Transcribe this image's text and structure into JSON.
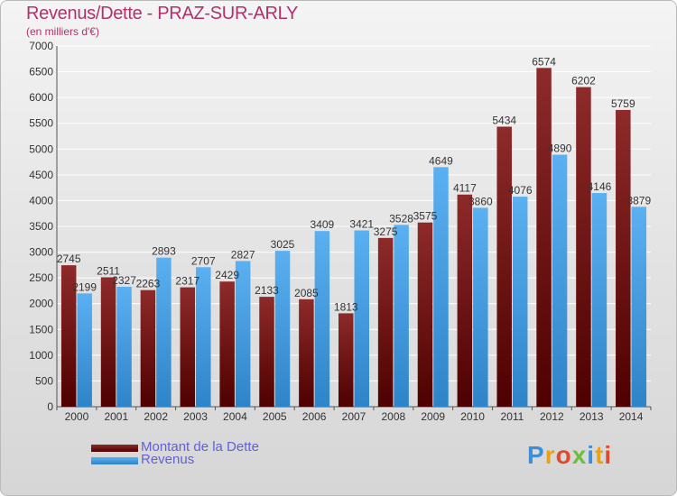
{
  "header": {
    "title": "Revenus/Dette - PRAZ-SUR-ARLY",
    "subtitle": "(en milliers d'€)"
  },
  "legend": [
    {
      "label": "Montant de la Dette",
      "color": "#7a1c1c"
    },
    {
      "label": "Revenus",
      "color": "#4aa3e6"
    }
  ],
  "logo": {
    "text": "Proxiti"
  },
  "colors": {
    "dette": "#7a1c1c",
    "revenus": "#4aa3e6",
    "grid": "#ffffff",
    "title": "#b3306b"
  },
  "chart_data": {
    "type": "bar",
    "title": "Revenus/Dette - PRAZ-SUR-ARLY",
    "subtitle": "(en milliers d'€)",
    "categories": [
      "2000",
      "2001",
      "2002",
      "2003",
      "2004",
      "2005",
      "2006",
      "2007",
      "2008",
      "2009",
      "2010",
      "2011",
      "2012",
      "2013",
      "2014"
    ],
    "series": [
      {
        "name": "Montant de la Dette",
        "values": [
          2745,
          2511,
          2263,
          2317,
          2429,
          2133,
          2085,
          1813,
          3275,
          3575,
          4117,
          5434,
          6574,
          6202,
          5759
        ]
      },
      {
        "name": "Revenus",
        "values": [
          2199,
          2327,
          2893,
          2707,
          2827,
          3025,
          3409,
          3421,
          3528,
          4649,
          3860,
          4076,
          4890,
          4146,
          3879
        ]
      }
    ],
    "ylim": [
      0,
      7000
    ],
    "yticks": [
      0,
      500,
      1000,
      1500,
      2000,
      2500,
      3000,
      3500,
      4000,
      4500,
      5000,
      5500,
      6000,
      6500,
      7000
    ],
    "grid": true,
    "legend_position": "bottom-left"
  }
}
